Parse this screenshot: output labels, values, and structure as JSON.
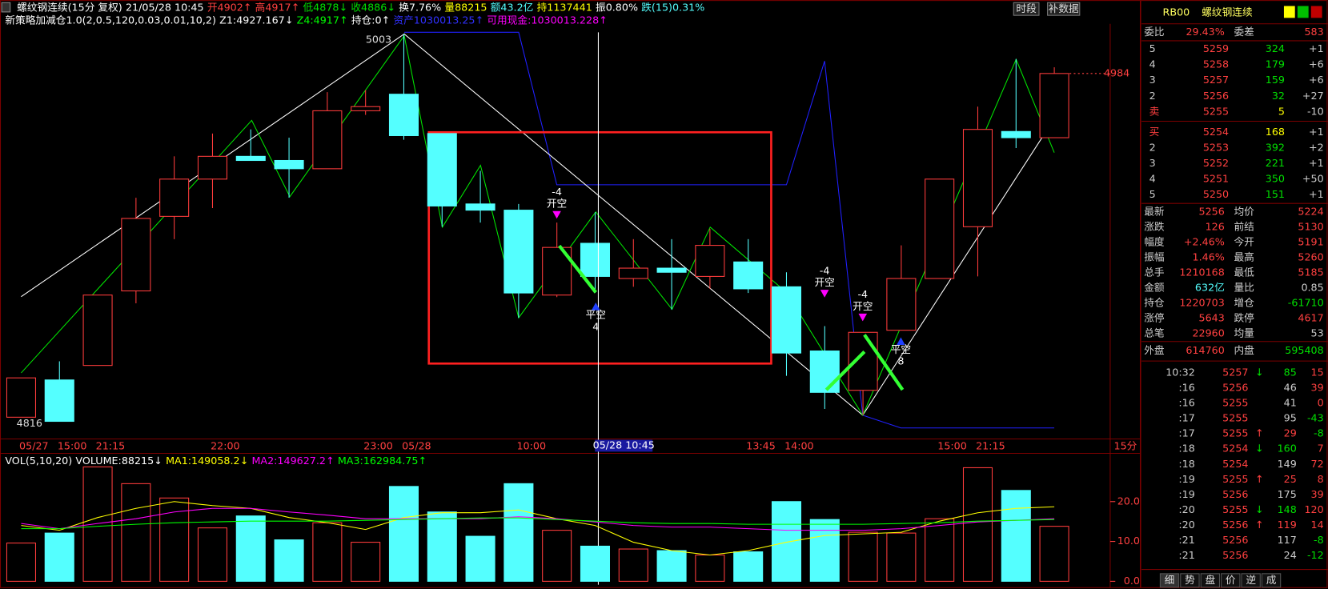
{
  "header": {
    "line1": [
      "螺纹钢连续(15分 复权)",
      "21/05/28 10:45",
      "开4902↑",
      "高4917↑",
      "低4878↓",
      "收4886↓",
      "换7.76%",
      "量88215",
      "额43.2亿",
      "持1137441",
      "振0.80%",
      "跌(15)0.31%"
    ],
    "line2": [
      "新策略加减仓1.0(2,0.5,120,0.03,0.01,10,2)",
      "Z1:4927.167↓",
      "Z4:4917↑",
      "持仓:0↑",
      "资产1030013.25↑",
      "可用现金:1030013.228↑"
    ],
    "buttons": [
      "时段",
      "补数据"
    ]
  },
  "chart_data": [
    {
      "type": "candlestick",
      "period": "15分",
      "categories": [
        "05/27",
        "15:00",
        "21:15",
        null,
        null,
        "22:00",
        null,
        null,
        null,
        "23:00",
        "05/28",
        null,
        null,
        "10:00",
        null,
        null,
        null,
        null,
        null,
        "13:45",
        "14:00",
        null,
        null,
        null,
        "15:00",
        "21:15",
        null,
        null
      ],
      "crosshair_label": "05/28 10:45",
      "open": [
        4818,
        4836,
        4843,
        4879,
        4915,
        4933,
        4944,
        4942,
        4938,
        4966,
        4974,
        4955,
        4921,
        4918,
        4877,
        4902,
        4885,
        4890,
        4886,
        4893,
        4881,
        4850,
        4831,
        4860,
        4885,
        4910,
        4956,
        4953
      ],
      "close": [
        4837,
        4816,
        4877,
        4914,
        4933,
        4944,
        4942,
        4938,
        4966,
        4968,
        4954,
        4920,
        4918,
        4878,
        4900,
        4886,
        4890,
        4888,
        4901,
        4880,
        4849,
        4830,
        4859,
        4885,
        4933,
        4957,
        4953,
        4984
      ],
      "high": [
        4837,
        4845,
        4877,
        4924,
        4944,
        4955,
        4957,
        4953,
        4975,
        4976,
        5003,
        4955,
        4937,
        4921,
        4912,
        4917,
        4904,
        4904,
        4909,
        4904,
        4888,
        4862,
        4859,
        4901,
        4933,
        4968,
        4991,
        4987
      ],
      "low": [
        4818,
        4816,
        4843,
        4873,
        4904,
        4919,
        4942,
        4924,
        4938,
        4964,
        4952,
        4910,
        4912,
        4866,
        4876,
        4878,
        4881,
        4870,
        4880,
        4878,
        4838,
        4822,
        4819,
        4860,
        4885,
        4886,
        4948,
        4953
      ],
      "up_color": "#ff3c3c",
      "down_color": "#54ffff",
      "ylim": [
        4807.5,
        5008
      ],
      "annotations": [
        {
          "value": 5003
        },
        {
          "value": 4816
        }
      ],
      "signals": [
        [
          "-4",
          "开空"
        ],
        [
          "平空",
          "4"
        ],
        [
          "-4",
          "开空"
        ],
        [
          "-4",
          "开空"
        ],
        [
          "平空",
          "8"
        ]
      ]
    },
    {
      "type": "bar",
      "title": [
        "VOL(5,10,20)",
        "VOLUME:88215↓",
        "MA1:149058.2↓",
        "MA2:149627.2↑",
        "MA3:162984.75↑"
      ],
      "values": [
        9.6,
        12.1,
        28.7,
        24.5,
        20.9,
        13.4,
        16.4,
        10.4,
        14.7,
        9.8,
        23.8,
        17.4,
        11.3,
        24.5,
        12.8,
        8.82,
        8.1,
        7.7,
        6.6,
        7.4,
        20.0,
        15.5,
        12.3,
        12.1,
        15.7,
        28.5,
        22.8,
        13.8
      ],
      "series": [
        {
          "name": "MA1",
          "color": "#ffff00",
          "values": [
            14,
            12.8,
            16,
            18.3,
            20,
            19,
            18.3,
            16,
            14.7,
            13,
            16,
            17.2,
            17.2,
            17.9,
            15.7,
            14,
            9.8,
            7.7,
            6.6,
            7.7,
            9.8,
            11.5,
            11.9,
            12.3,
            15.1,
            17.2,
            18.3,
            18.7
          ]
        },
        {
          "name": "MA2",
          "color": "#ff00ff",
          "values": [
            14.5,
            13.2,
            14.5,
            15.7,
            17.4,
            18.3,
            18.3,
            17.4,
            16.6,
            15.7,
            15.7,
            15.7,
            15.7,
            16.2,
            15.7,
            14.9,
            14,
            13.6,
            13.6,
            13.2,
            12.8,
            12.8,
            12.8,
            13.2,
            14,
            14.9,
            15.3,
            15.7
          ]
        },
        {
          "name": "MA3",
          "color": "#00ff00",
          "values": [
            13.2,
            13.2,
            13.8,
            14.3,
            14.7,
            14.9,
            15.1,
            15.1,
            15.1,
            15.3,
            15.5,
            15.7,
            15.9,
            15.9,
            15.5,
            15.1,
            14.7,
            14.5,
            14.5,
            14.3,
            14.3,
            14.3,
            14.3,
            14.5,
            14.7,
            15.1,
            15.3,
            15.5
          ]
        }
      ],
      "ylim": [
        0,
        32.1
      ],
      "yticks": [
        {
          "value": 0,
          "label": "0.0"
        },
        {
          "value": 10,
          "label": "10.0"
        },
        {
          "value": 20,
          "label": "20.0"
        }
      ]
    }
  ],
  "quote": {
    "code": "RB00",
    "name": "螺纹钢连续",
    "ratio": [
      "委比",
      "29.43%",
      "委差",
      "583"
    ],
    "asks": [
      [
        "5",
        "5259",
        "324",
        "+1"
      ],
      [
        "4",
        "5258",
        "179",
        "+6"
      ],
      [
        "3",
        "5257",
        "159",
        "+6"
      ],
      [
        "2",
        "5256",
        "32",
        "+27"
      ],
      [
        "卖",
        "5255",
        "5",
        "-10"
      ]
    ],
    "bids": [
      [
        "买",
        "5254",
        "168",
        "+1"
      ],
      [
        "2",
        "5253",
        "392",
        "+2"
      ],
      [
        "3",
        "5252",
        "221",
        "+1"
      ],
      [
        "4",
        "5251",
        "350",
        "+50"
      ],
      [
        "5",
        "5250",
        "151",
        "+1"
      ]
    ],
    "stats": [
      [
        "最新",
        "5256",
        "均价",
        "5224"
      ],
      [
        "涨跌",
        "126",
        "前结",
        "5130"
      ],
      [
        "幅度",
        "+2.46%",
        "今开",
        "5191"
      ],
      [
        "振幅",
        "1.46%",
        "最高",
        "5260"
      ],
      [
        "总手",
        "1210168",
        "最低",
        "5185"
      ],
      [
        "金额",
        "632亿",
        "量比",
        "0.85"
      ],
      [
        "持仓",
        "1220703",
        "增仓",
        "-61710"
      ],
      [
        "涨停",
        "5643",
        "跌停",
        "4617"
      ],
      [
        "总笔",
        "22960",
        "均量",
        "53"
      ]
    ],
    "outer": [
      "外盘",
      "614760",
      "内盘",
      "595408"
    ],
    "ticks": [
      [
        "10:32",
        "5257",
        "↓",
        "85",
        "15"
      ],
      [
        ":16",
        "5256",
        "46",
        "39"
      ],
      [
        ":16",
        "5255",
        "41",
        "0"
      ],
      [
        ":17",
        "5255",
        "95",
        "-43"
      ],
      [
        ":17",
        "5255",
        "↑",
        "29",
        "-8"
      ],
      [
        ":18",
        "5254",
        "↓",
        "160",
        "7"
      ],
      [
        ":18",
        "5254",
        "149",
        "72"
      ],
      [
        ":19",
        "5255",
        "↑",
        "25",
        "8"
      ],
      [
        ":19",
        "5256",
        "175",
        "39"
      ],
      [
        ":20",
        "5255",
        "↓",
        "148",
        "120"
      ],
      [
        ":20",
        "5256",
        "↑",
        "119",
        "14"
      ],
      [
        ":21",
        "5256",
        "117",
        "-8"
      ],
      [
        ":21",
        "5256",
        "24",
        "-12"
      ]
    ],
    "tabs": [
      "细",
      "势",
      "盘",
      "价",
      "逆",
      "成"
    ]
  }
}
